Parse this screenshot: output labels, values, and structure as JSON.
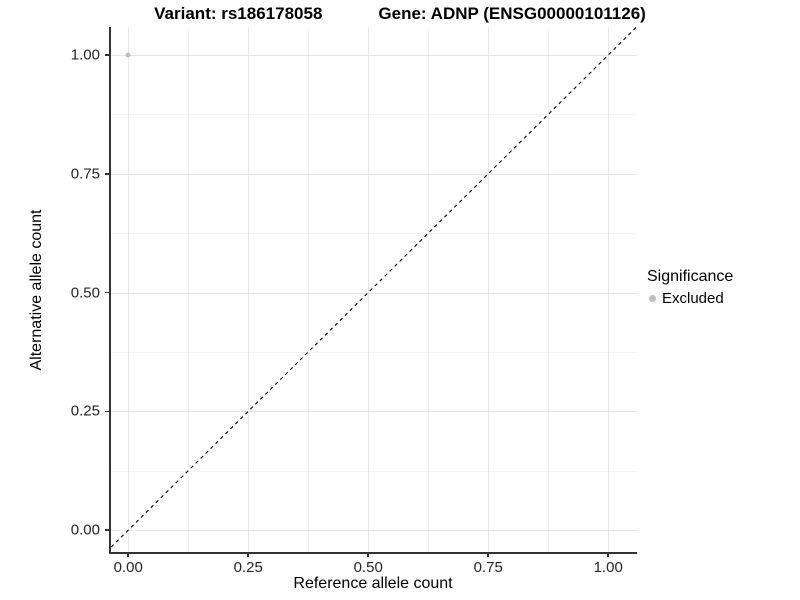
{
  "title": {
    "variant": "Variant: rs186178058",
    "gene": "Gene: ADNP (ENSG00000101126)"
  },
  "legend": {
    "title": "Significance",
    "items": [
      {
        "label": "Excluded",
        "color": "#bebebe"
      }
    ]
  },
  "colors": {
    "axis_line": "#333333",
    "grid_major": "#e7e7e7",
    "grid_minor": "#f3f3f3",
    "reference_line": "#000000",
    "point": "#bebebe"
  },
  "chart_data": {
    "type": "scatter",
    "title": "Variant: rs186178058 — Gene: ADNP (ENSG00000101126)",
    "xlabel": "Reference allele count",
    "ylabel": "Alternative allele count",
    "xlim": [
      -0.04,
      1.06
    ],
    "ylim": [
      -0.046,
      1.059
    ],
    "xticks": {
      "values": [
        0,
        0.25,
        0.5,
        0.75,
        1
      ],
      "labels": [
        "0.00",
        "0.25",
        "0.50",
        "0.75",
        "1.00"
      ]
    },
    "yticks": {
      "values": [
        0,
        0.25,
        0.5,
        0.75,
        1
      ],
      "labels": [
        "0.00",
        "0.25",
        "0.50",
        "0.75",
        "1.00"
      ]
    },
    "minor_ticks": [
      0.125,
      0.375,
      0.625,
      0.875
    ],
    "grid": "major+minor",
    "legend_position": "right",
    "series": [
      {
        "name": "Excluded",
        "color": "#bebebe",
        "points": [
          {
            "x": 0.0,
            "y": 1.0
          }
        ]
      }
    ],
    "reference_line": {
      "slope": 1,
      "intercept": 0,
      "style": "dashed"
    }
  }
}
